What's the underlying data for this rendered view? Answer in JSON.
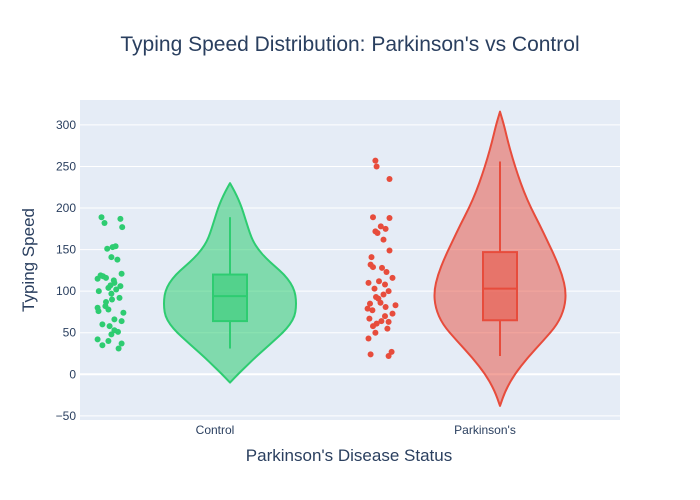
{
  "chart_data": {
    "type": "violin",
    "title": "Typing Speed Distribution: Parkinson's vs Control",
    "xlabel": "Parkinson's Disease Status",
    "ylabel": "Typing Speed",
    "ylim": [
      -55,
      330
    ],
    "yticks": [
      -50,
      0,
      50,
      100,
      150,
      200,
      250,
      300
    ],
    "ytick_labels": [
      "−50",
      "0",
      "50",
      "100",
      "150",
      "200",
      "250",
      "300"
    ],
    "categories": [
      "Control",
      "Parkinson's"
    ],
    "grid": true,
    "plot_bg": "#e5ecf6",
    "series": [
      {
        "category": "Control",
        "color": "#2ecc71",
        "fill": "rgba(46,204,113,0.55)",
        "box": {
          "q1": 64,
          "median": 94,
          "q3": 120,
          "whisker_low": 31,
          "whisker_high": 189
        },
        "violin_range": [
          -10,
          230
        ],
        "density": [
          [
            -10,
            0.0
          ],
          [
            0,
            0.12
          ],
          [
            10,
            0.25
          ],
          [
            20,
            0.38
          ],
          [
            30,
            0.52
          ],
          [
            40,
            0.66
          ],
          [
            50,
            0.8
          ],
          [
            60,
            0.91
          ],
          [
            70,
            0.98
          ],
          [
            80,
            1.0
          ],
          [
            90,
            1.0
          ],
          [
            100,
            0.98
          ],
          [
            110,
            0.92
          ],
          [
            120,
            0.82
          ],
          [
            130,
            0.68
          ],
          [
            140,
            0.54
          ],
          [
            150,
            0.43
          ],
          [
            160,
            0.35
          ],
          [
            170,
            0.3
          ],
          [
            180,
            0.26
          ],
          [
            190,
            0.22
          ],
          [
            200,
            0.18
          ],
          [
            210,
            0.13
          ],
          [
            220,
            0.07
          ],
          [
            230,
            0.0
          ]
        ],
        "points": [
          {
            "y": 189,
            "j": 0.15
          },
          {
            "y": 187,
            "j": 0.78
          },
          {
            "y": 182,
            "j": 0.25
          },
          {
            "y": 177,
            "j": 0.84
          },
          {
            "y": 154,
            "j": 0.62
          },
          {
            "y": 153,
            "j": 0.52
          },
          {
            "y": 151,
            "j": 0.34
          },
          {
            "y": 141,
            "j": 0.48
          },
          {
            "y": 138,
            "j": 0.68
          },
          {
            "y": 121,
            "j": 0.82
          },
          {
            "y": 119,
            "j": 0.12
          },
          {
            "y": 118,
            "j": 0.2
          },
          {
            "y": 116,
            "j": 0.3
          },
          {
            "y": 115,
            "j": 0.02
          },
          {
            "y": 113,
            "j": 0.56
          },
          {
            "y": 110,
            "j": 0.58
          },
          {
            "y": 107,
            "j": 0.45
          },
          {
            "y": 106,
            "j": 0.78
          },
          {
            "y": 104,
            "j": 0.38
          },
          {
            "y": 102,
            "j": 0.64
          },
          {
            "y": 100,
            "j": 0.06
          },
          {
            "y": 97,
            "j": 0.48
          },
          {
            "y": 92,
            "j": 0.75
          },
          {
            "y": 90,
            "j": 0.5
          },
          {
            "y": 87,
            "j": 0.3
          },
          {
            "y": 82,
            "j": 0.28
          },
          {
            "y": 80,
            "j": 0.02
          },
          {
            "y": 78,
            "j": 0.38
          },
          {
            "y": 76,
            "j": 0.05
          },
          {
            "y": 74,
            "j": 0.88
          },
          {
            "y": 66,
            "j": 0.58
          },
          {
            "y": 64,
            "j": 0.82
          },
          {
            "y": 60,
            "j": 0.18
          },
          {
            "y": 58,
            "j": 0.42
          },
          {
            "y": 53,
            "j": 0.58
          },
          {
            "y": 51,
            "j": 0.7
          },
          {
            "y": 48,
            "j": 0.48
          },
          {
            "y": 42,
            "j": 0.02
          },
          {
            "y": 40,
            "j": 0.38
          },
          {
            "y": 37,
            "j": 0.82
          },
          {
            "y": 35,
            "j": 0.18
          },
          {
            "y": 31,
            "j": 0.72
          }
        ]
      },
      {
        "category": "Parkinson's",
        "color": "#e74c3c",
        "fill": "rgba(231,76,60,0.5)",
        "box": {
          "q1": 65,
          "median": 103,
          "q3": 147,
          "whisker_low": 22,
          "whisker_high": 256
        },
        "violin_range": [
          -38,
          316
        ],
        "density": [
          [
            -38,
            0.0
          ],
          [
            -20,
            0.08
          ],
          [
            0,
            0.22
          ],
          [
            20,
            0.42
          ],
          [
            40,
            0.65
          ],
          [
            60,
            0.87
          ],
          [
            80,
            0.98
          ],
          [
            100,
            1.0
          ],
          [
            120,
            0.94
          ],
          [
            140,
            0.84
          ],
          [
            160,
            0.72
          ],
          [
            180,
            0.6
          ],
          [
            200,
            0.47
          ],
          [
            220,
            0.36
          ],
          [
            240,
            0.27
          ],
          [
            260,
            0.19
          ],
          [
            280,
            0.12
          ],
          [
            300,
            0.06
          ],
          [
            316,
            0.0
          ]
        ],
        "points": [
          {
            "y": 257,
            "j": 0.28
          },
          {
            "y": 250,
            "j": 0.32
          },
          {
            "y": 235,
            "j": 0.75
          },
          {
            "y": 189,
            "j": 0.2
          },
          {
            "y": 188,
            "j": 0.75
          },
          {
            "y": 178,
            "j": 0.46
          },
          {
            "y": 175,
            "j": 0.62
          },
          {
            "y": 172,
            "j": 0.28
          },
          {
            "y": 170,
            "j": 0.35
          },
          {
            "y": 162,
            "j": 0.55
          },
          {
            "y": 149,
            "j": 0.75
          },
          {
            "y": 141,
            "j": 0.15
          },
          {
            "y": 132,
            "j": 0.12
          },
          {
            "y": 129,
            "j": 0.2
          },
          {
            "y": 128,
            "j": 0.5
          },
          {
            "y": 123,
            "j": 0.65
          },
          {
            "y": 116,
            "j": 0.85
          },
          {
            "y": 112,
            "j": 0.4
          },
          {
            "y": 110,
            "j": 0.05
          },
          {
            "y": 108,
            "j": 0.6
          },
          {
            "y": 103,
            "j": 0.25
          },
          {
            "y": 100,
            "j": 0.72
          },
          {
            "y": 96,
            "j": 0.55
          },
          {
            "y": 93,
            "j": 0.3
          },
          {
            "y": 91,
            "j": 0.38
          },
          {
            "y": 86,
            "j": 0.45
          },
          {
            "y": 85,
            "j": 0.1
          },
          {
            "y": 83,
            "j": 0.95
          },
          {
            "y": 81,
            "j": 0.62
          },
          {
            "y": 79,
            "j": 0.02
          },
          {
            "y": 77,
            "j": 0.18
          },
          {
            "y": 73,
            "j": 0.85
          },
          {
            "y": 70,
            "j": 0.6
          },
          {
            "y": 67,
            "j": 0.08
          },
          {
            "y": 64,
            "j": 0.48
          },
          {
            "y": 63,
            "j": 0.72
          },
          {
            "y": 61,
            "j": 0.32
          },
          {
            "y": 58,
            "j": 0.2
          },
          {
            "y": 55,
            "j": 0.68
          },
          {
            "y": 50,
            "j": 0.28
          },
          {
            "y": 43,
            "j": 0.05
          },
          {
            "y": 27,
            "j": 0.82
          },
          {
            "y": 24,
            "j": 0.12
          },
          {
            "y": 22,
            "j": 0.72
          }
        ]
      }
    ]
  }
}
